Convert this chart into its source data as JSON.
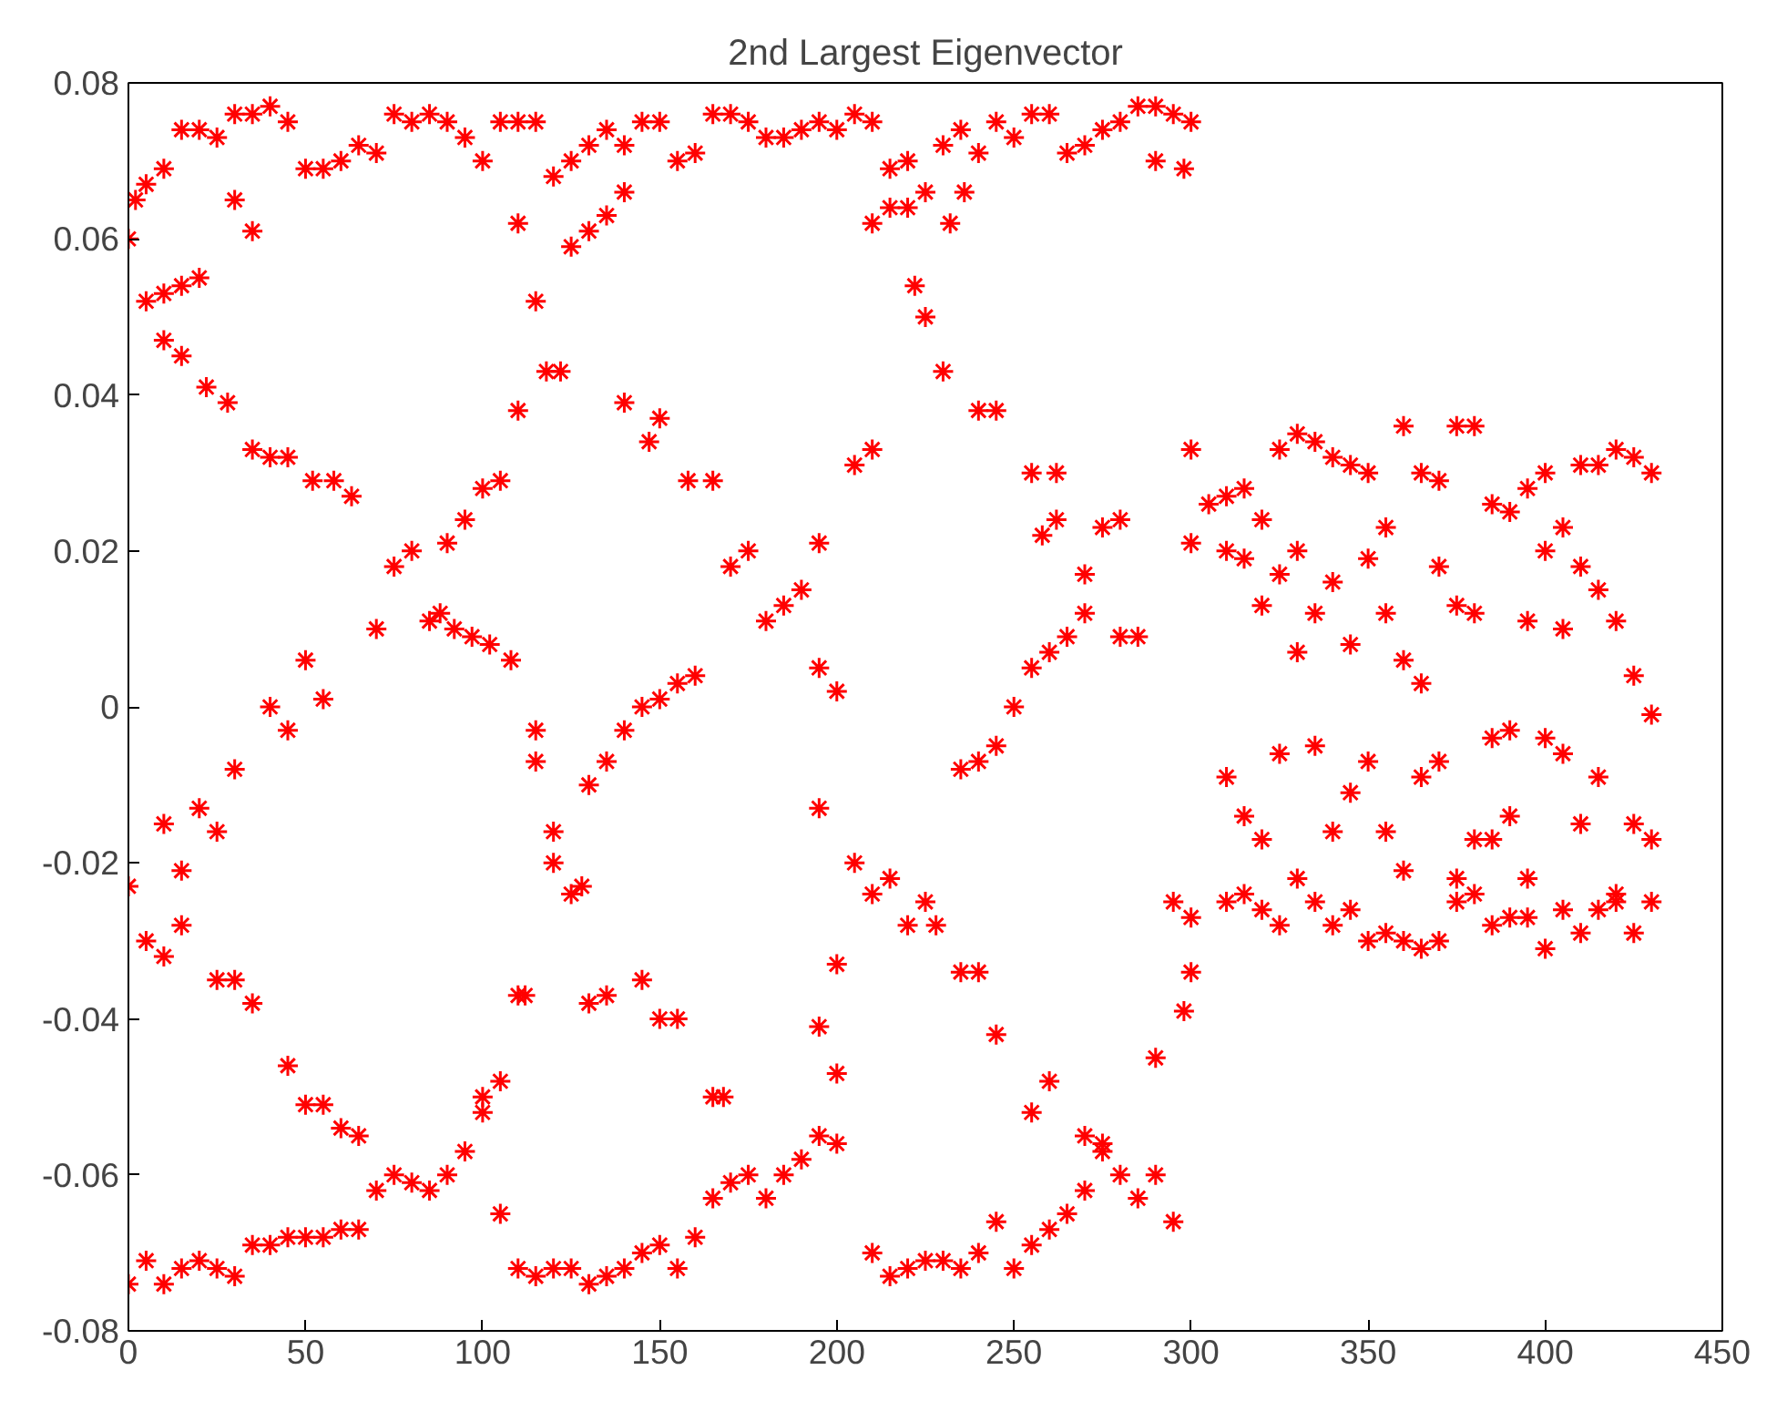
{
  "chart_data": {
    "type": "scatter",
    "title": "2nd Largest Eigenvector",
    "marker": "cross",
    "grid": false,
    "xlim": [
      0,
      450
    ],
    "ylim": [
      -0.08,
      0.08
    ],
    "xticks": [
      0,
      50,
      100,
      150,
      200,
      250,
      300,
      350,
      400,
      450
    ],
    "yticks": [
      -0.08,
      -0.06,
      -0.04,
      -0.02,
      0,
      0.02,
      0.04,
      0.06,
      0.08
    ],
    "series": [
      {
        "color": "#ff0000",
        "x": [
          0,
          2,
          5,
          10,
          15,
          20,
          25,
          30,
          35,
          40,
          45,
          50,
          55,
          60,
          65,
          70,
          75,
          80,
          85,
          90,
          95,
          100,
          105,
          110,
          115,
          120,
          125,
          130,
          135,
          140,
          145,
          150,
          155,
          160,
          165,
          170,
          175,
          180,
          185,
          190,
          195,
          200,
          205,
          210,
          215,
          220,
          225,
          230,
          235,
          240,
          245,
          250,
          255,
          260,
          265,
          270,
          275,
          280,
          285,
          290,
          295,
          300,
          290,
          298,
          5,
          10,
          15,
          20,
          10,
          15,
          22,
          28,
          30,
          35,
          35,
          40,
          45,
          52,
          58,
          63,
          110,
          115,
          118,
          122,
          125,
          130,
          135,
          140,
          140,
          147,
          150,
          158,
          165,
          210,
          215,
          220,
          222,
          225,
          230,
          232,
          236,
          240,
          245,
          255,
          262,
          110,
          70,
          75,
          80,
          85,
          90,
          95,
          100,
          105,
          88,
          92,
          97,
          102,
          108,
          170,
          175,
          180,
          185,
          190,
          195,
          195,
          200,
          205,
          210,
          258,
          262,
          270,
          275,
          280,
          280,
          285,
          300,
          300,
          40,
          45,
          50,
          55,
          30,
          25,
          20,
          15,
          10,
          5,
          0,
          10,
          15,
          25,
          30,
          35,
          45,
          50,
          55,
          60,
          65,
          115,
          115,
          120,
          120,
          125,
          128,
          130,
          135,
          140,
          145,
          150,
          155,
          160,
          130,
          135,
          145,
          150,
          155,
          110,
          112,
          165,
          168,
          195,
          200,
          200,
          210,
          215,
          220,
          225,
          228,
          235,
          240,
          245,
          250,
          255,
          260,
          265,
          270,
          235,
          240,
          245,
          255,
          260,
          290,
          298,
          300,
          295,
          300,
          195,
          205,
          0,
          5,
          10,
          15,
          20,
          25,
          30,
          35,
          40,
          45,
          50,
          55,
          60,
          65,
          70,
          75,
          80,
          85,
          90,
          95,
          100,
          105,
          100,
          105,
          110,
          115,
          120,
          125,
          130,
          135,
          140,
          145,
          150,
          155,
          160,
          165,
          170,
          175,
          180,
          185,
          190,
          195,
          200,
          210,
          215,
          220,
          225,
          230,
          235,
          240,
          245,
          250,
          255,
          260,
          265,
          270,
          275,
          280,
          285,
          290,
          295,
          270,
          275,
          305,
          310,
          315,
          320,
          325,
          330,
          335,
          340,
          345,
          350,
          355,
          360,
          365,
          370,
          375,
          380,
          385,
          390,
          395,
          400,
          405,
          410,
          415,
          420,
          425,
          430,
          310,
          315,
          320,
          325,
          330,
          335,
          340,
          345,
          350,
          355,
          360,
          365,
          370,
          375,
          380,
          385,
          390,
          395,
          400,
          405,
          410,
          415,
          420,
          425,
          430,
          310,
          315,
          320,
          325,
          330,
          335,
          340,
          345,
          350,
          355,
          360,
          365,
          370,
          375,
          380,
          385,
          390,
          395,
          400,
          405,
          410,
          415,
          420,
          425,
          430,
          310,
          315,
          320,
          325,
          330,
          335,
          340,
          345,
          350,
          355,
          360,
          365,
          370,
          375,
          380,
          385,
          390,
          395,
          400,
          405,
          410,
          415,
          420,
          425,
          430
        ],
        "values": [
          0.06,
          0.065,
          0.067,
          0.069,
          0.074,
          0.074,
          0.073,
          0.076,
          0.076,
          0.077,
          0.075,
          0.069,
          0.069,
          0.07,
          0.072,
          0.071,
          0.076,
          0.075,
          0.076,
          0.075,
          0.073,
          0.07,
          0.075,
          0.075,
          0.075,
          0.068,
          0.07,
          0.072,
          0.074,
          0.072,
          0.075,
          0.075,
          0.07,
          0.071,
          0.076,
          0.076,
          0.075,
          0.073,
          0.073,
          0.074,
          0.075,
          0.074,
          0.076,
          0.075,
          0.069,
          0.07,
          0.066,
          0.072,
          0.074,
          0.071,
          0.075,
          0.073,
          0.076,
          0.076,
          0.071,
          0.072,
          0.074,
          0.075,
          0.077,
          0.077,
          0.076,
          0.075,
          0.07,
          0.069,
          0.052,
          0.053,
          0.054,
          0.055,
          0.047,
          0.045,
          0.041,
          0.039,
          0.065,
          0.061,
          0.033,
          0.032,
          0.032,
          0.029,
          0.029,
          0.027,
          0.062,
          0.052,
          0.043,
          0.043,
          0.059,
          0.061,
          0.063,
          0.066,
          0.039,
          0.034,
          0.037,
          0.029,
          0.029,
          0.062,
          0.064,
          0.064,
          0.054,
          0.05,
          0.043,
          0.062,
          0.066,
          0.038,
          0.038,
          0.03,
          0.03,
          0.038,
          0.01,
          0.018,
          0.02,
          0.011,
          0.021,
          0.024,
          0.028,
          0.029,
          0.012,
          0.01,
          0.009,
          0.008,
          0.006,
          0.018,
          0.02,
          0.011,
          0.013,
          0.015,
          0.021,
          0.005,
          0.002,
          0.031,
          0.033,
          0.022,
          0.024,
          0.017,
          0.023,
          0.024,
          0.009,
          0.009,
          0.033,
          0.021,
          0.0,
          -0.003,
          0.006,
          0.001,
          -0.008,
          -0.016,
          -0.013,
          -0.021,
          -0.015,
          -0.03,
          -0.023,
          -0.032,
          -0.028,
          -0.035,
          -0.035,
          -0.038,
          -0.046,
          -0.051,
          -0.051,
          -0.054,
          -0.055,
          -0.003,
          -0.007,
          -0.02,
          -0.016,
          -0.024,
          -0.023,
          -0.01,
          -0.007,
          -0.003,
          0.0,
          0.001,
          0.003,
          0.004,
          -0.038,
          -0.037,
          -0.035,
          -0.04,
          -0.04,
          -0.037,
          -0.037,
          -0.05,
          -0.05,
          -0.041,
          -0.047,
          -0.033,
          -0.024,
          -0.022,
          -0.028,
          -0.025,
          -0.028,
          -0.008,
          -0.007,
          -0.005,
          0.0,
          0.005,
          0.007,
          0.009,
          0.012,
          -0.034,
          -0.034,
          -0.042,
          -0.052,
          -0.048,
          -0.045,
          -0.039,
          -0.034,
          -0.025,
          -0.027,
          -0.013,
          -0.02,
          -0.074,
          -0.071,
          -0.074,
          -0.072,
          -0.071,
          -0.072,
          -0.073,
          -0.069,
          -0.069,
          -0.068,
          -0.068,
          -0.068,
          -0.067,
          -0.067,
          -0.062,
          -0.06,
          -0.061,
          -0.062,
          -0.06,
          -0.057,
          -0.05,
          -0.048,
          -0.052,
          -0.065,
          -0.072,
          -0.073,
          -0.072,
          -0.072,
          -0.074,
          -0.073,
          -0.072,
          -0.07,
          -0.069,
          -0.072,
          -0.068,
          -0.063,
          -0.061,
          -0.06,
          -0.063,
          -0.06,
          -0.058,
          -0.055,
          -0.056,
          -0.07,
          -0.073,
          -0.072,
          -0.071,
          -0.071,
          -0.072,
          -0.07,
          -0.066,
          -0.072,
          -0.069,
          -0.067,
          -0.065,
          -0.062,
          -0.057,
          -0.06,
          -0.063,
          -0.06,
          -0.066,
          -0.055,
          -0.056,
          0.026,
          0.027,
          0.028,
          0.024,
          0.033,
          0.035,
          0.034,
          0.032,
          0.031,
          0.03,
          0.023,
          0.036,
          0.03,
          0.029,
          0.036,
          0.036,
          0.026,
          0.025,
          0.028,
          0.03,
          0.023,
          0.031,
          0.031,
          0.033,
          0.032,
          0.03,
          0.02,
          0.019,
          0.013,
          0.017,
          0.02,
          0.012,
          0.016,
          0.008,
          0.019,
          0.012,
          0.006,
          0.003,
          0.018,
          0.013,
          0.012,
          -0.004,
          -0.003,
          0.011,
          0.02,
          0.01,
          0.018,
          0.015,
          0.011,
          0.004,
          -0.001,
          -0.009,
          -0.014,
          -0.017,
          -0.006,
          0.007,
          -0.005,
          -0.016,
          -0.011,
          -0.007,
          -0.016,
          -0.021,
          -0.009,
          -0.007,
          -0.022,
          -0.017,
          -0.017,
          -0.014,
          -0.022,
          -0.004,
          -0.006,
          -0.015,
          -0.009,
          -0.024,
          -0.015,
          -0.017,
          -0.025,
          -0.024,
          -0.026,
          -0.028,
          -0.022,
          -0.025,
          -0.028,
          -0.026,
          -0.03,
          -0.029,
          -0.03,
          -0.031,
          -0.03,
          -0.025,
          -0.024,
          -0.028,
          -0.027,
          -0.027,
          -0.031,
          -0.026,
          -0.029,
          -0.026,
          -0.025,
          -0.029,
          -0.025
        ]
      }
    ]
  }
}
